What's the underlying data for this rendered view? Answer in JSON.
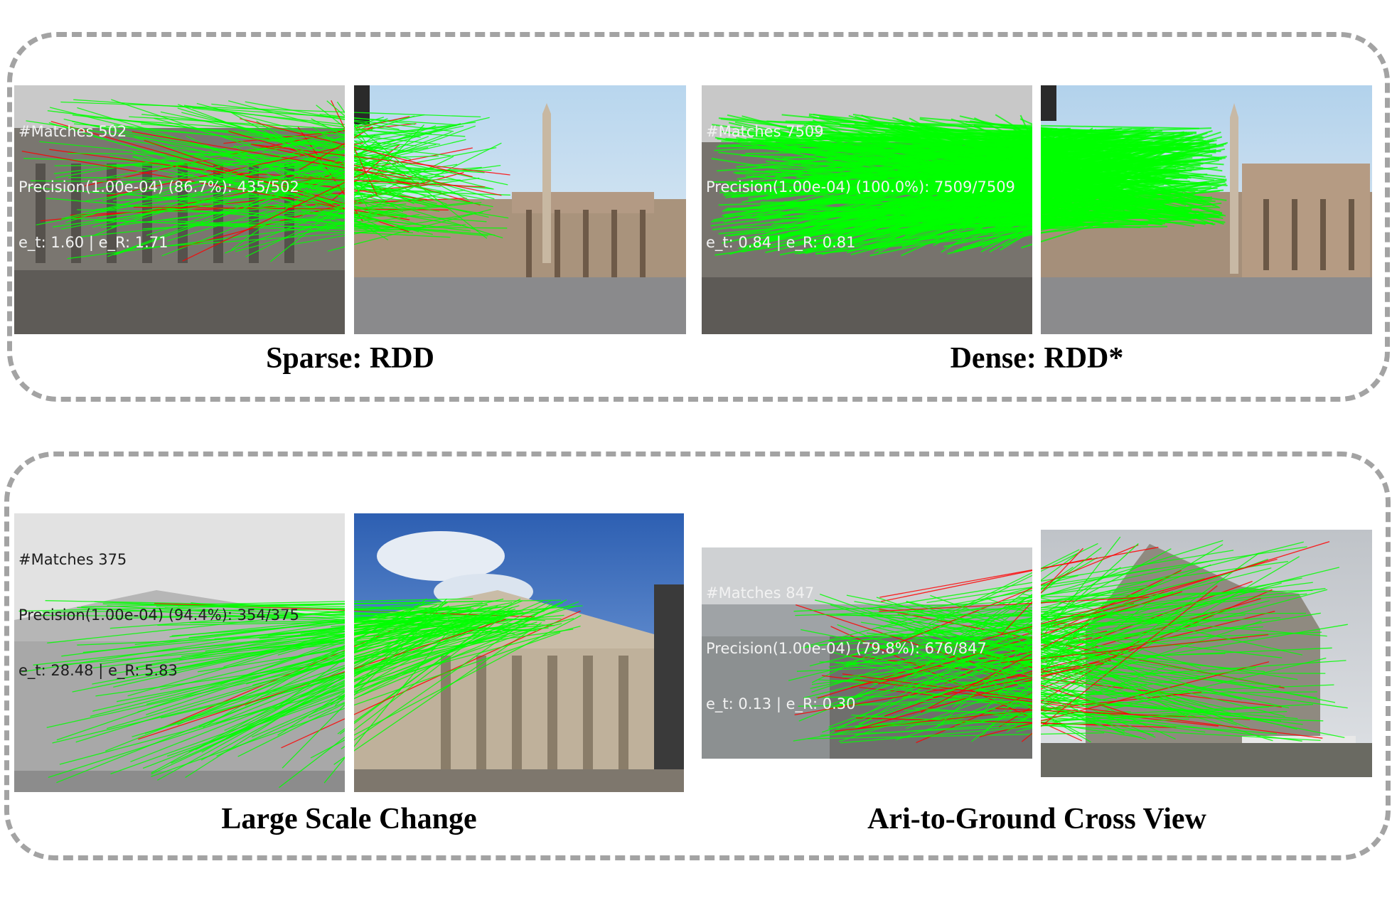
{
  "panels": [
    {
      "caption": "Sparse: RDD",
      "overlay": {
        "matches": "#Matches 502",
        "precision": "Precision(1.00e-04) (86.7%): 435/502",
        "errors": "e_t: 1.60 | e_R: 1.71"
      },
      "matches_total": 502,
      "matches_inliers": 435
    },
    {
      "caption": "Dense: RDD*",
      "overlay": {
        "matches": "#Matches 7509",
        "precision": "Precision(1.00e-04) (100.0%): 7509/7509",
        "errors": "e_t: 0.84 | e_R: 0.81"
      },
      "matches_total": 7509,
      "matches_inliers": 7509
    },
    {
      "caption": "Large Scale Change",
      "overlay": {
        "matches": "#Matches 375",
        "precision": "Precision(1.00e-04) (94.4%): 354/375",
        "errors": "e_t: 28.48 | e_R: 5.83"
      },
      "matches_total": 375,
      "matches_inliers": 354
    },
    {
      "caption": "Ari-to-Ground Cross View",
      "overlay": {
        "matches": "#Matches 847",
        "precision": "Precision(1.00e-04) (79.8%): 676/847",
        "errors": "e_t: 0.13 | e_R: 0.30"
      },
      "matches_total": 847,
      "matches_inliers": 676
    }
  ],
  "colors": {
    "inlier_line": "#00ff00",
    "outlier_line": "#ff0000",
    "frame_dash": "#a3a3a3"
  }
}
